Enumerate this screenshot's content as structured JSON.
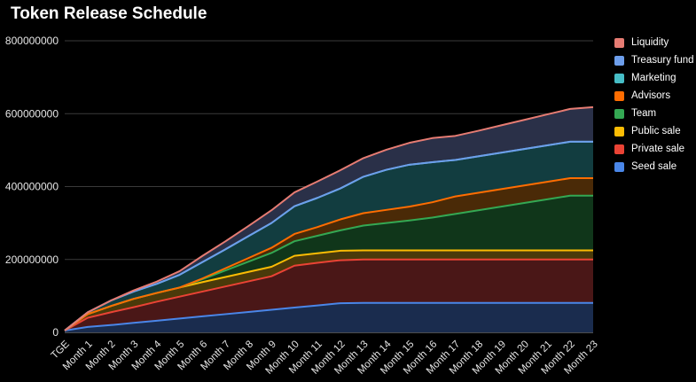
{
  "chart_data": {
    "type": "area",
    "stacked": true,
    "title": "Token Release Schedule",
    "xlabel": "",
    "ylabel": "",
    "ylim": [
      0,
      800000000
    ],
    "yticks": [
      "0",
      "200000000",
      "400000000",
      "600000000",
      "800000000"
    ],
    "grid": true,
    "legend_position": "right",
    "categories": [
      "TGE",
      "Month 1",
      "Month 2",
      "Month 3",
      "Month 4",
      "Month 5",
      "Month 6",
      "Month 7",
      "Month 8",
      "Month 9",
      "Month 10",
      "Month 11",
      "Month 12",
      "Month 13",
      "Month 14",
      "Month 15",
      "Month 16",
      "Month 17",
      "Month 18",
      "Month 19",
      "Month 20",
      "Month 21",
      "Month 22",
      "Month 23"
    ],
    "series": [
      {
        "name": "Seed sale",
        "color": "#4a86e8",
        "fill": "#1a2c4e",
        "values": [
          5000000,
          15000000,
          20000000,
          26000000,
          32000000,
          38000000,
          44000000,
          50000000,
          56000000,
          62000000,
          68000000,
          74000000,
          80000000,
          81000000,
          81000000,
          81000000,
          81000000,
          81000000,
          81000000,
          81000000,
          81000000,
          81000000,
          81000000,
          81000000
        ]
      },
      {
        "name": "Private sale",
        "color": "#ea4335",
        "fill": "#4a1717",
        "values": [
          0,
          25000000,
          35000000,
          43000000,
          52000000,
          60000000,
          68000000,
          76000000,
          84000000,
          92000000,
          115000000,
          117000000,
          118000000,
          119000000,
          119000000,
          119000000,
          119000000,
          119000000,
          119000000,
          119000000,
          119000000,
          119000000,
          119000000,
          119000000
        ]
      },
      {
        "name": "Public sale",
        "color": "#fbbc04",
        "fill": "#4a3a0a",
        "values": [
          0,
          10000000,
          17000000,
          23000000,
          24000000,
          25000000,
          26000000,
          26000000,
          26000000,
          26000000,
          27000000,
          26000000,
          26000000,
          25000000,
          25000000,
          25000000,
          25000000,
          25000000,
          25000000,
          25000000,
          25000000,
          25000000,
          25000000,
          25000000
        ]
      },
      {
        "name": "Team",
        "color": "#34a853",
        "fill": "#10361a",
        "values": [
          0,
          0,
          0,
          0,
          0,
          0,
          8000000,
          18000000,
          28000000,
          38000000,
          40000000,
          48000000,
          56000000,
          68000000,
          75000000,
          82000000,
          90000000,
          100000000,
          110000000,
          120000000,
          130000000,
          140000000,
          150000000,
          150000000
        ]
      },
      {
        "name": "Advisors",
        "color": "#ff6d01",
        "fill": "#4a2a07",
        "values": [
          0,
          0,
          0,
          0,
          0,
          0,
          2000000,
          6000000,
          10000000,
          14000000,
          20000000,
          24000000,
          30000000,
          34000000,
          36000000,
          38000000,
          42000000,
          48000000,
          48000000,
          48000000,
          48000000,
          48000000,
          48000000,
          48000000
        ]
      },
      {
        "name": "Marketing",
        "color": "#46bdc6",
        "fill": "#123d40",
        "values": [
          0,
          5000000,
          15000000,
          20000000,
          25000000,
          35000000,
          45000000,
          52000000,
          60000000,
          68000000,
          76000000,
          80000000,
          85000000,
          100000000,
          110000000,
          115000000,
          110000000,
          100000000,
          100000000,
          100000000,
          100000000,
          100000000,
          100000000,
          100000000
        ]
      },
      {
        "name": "Treasury fund",
        "color": "#6d9eeb",
        "fill": "#1d2740",
        "values": [
          0,
          0,
          0,
          0,
          0,
          0,
          0,
          0,
          0,
          0,
          0,
          0,
          0,
          0,
          0,
          0,
          0,
          0,
          0,
          0,
          0,
          0,
          0,
          0
        ]
      },
      {
        "name": "Liquidity",
        "color": "#e67c73",
        "fill": "#2a3048",
        "values": [
          0,
          0,
          0,
          3000000,
          6000000,
          10000000,
          17000000,
          22000000,
          28000000,
          35000000,
          38000000,
          45000000,
          50000000,
          51000000,
          55000000,
          60000000,
          66000000,
          66000000,
          70000000,
          75000000,
          80000000,
          85000000,
          90000000,
          95000000
        ]
      }
    ]
  }
}
